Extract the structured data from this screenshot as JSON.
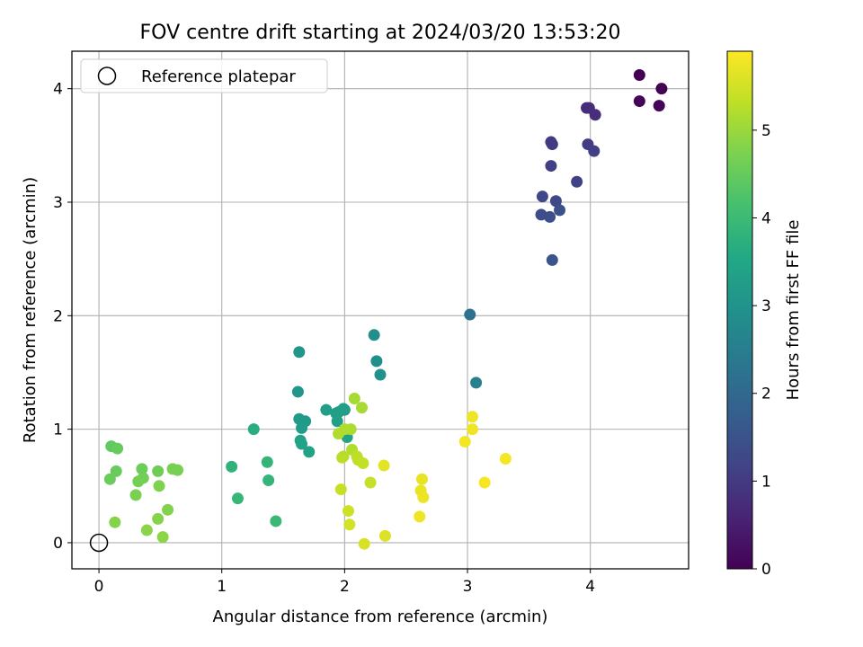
{
  "chart_data": {
    "type": "scatter",
    "title": "FOV centre drift starting at 2024/03/20 13:53:20",
    "xlabel": "Angular distance from reference (arcmin)",
    "ylabel": "Rotation from reference (arcmin)",
    "xlim": [
      -0.22,
      4.8
    ],
    "ylim": [
      -0.23,
      4.33
    ],
    "xticks": [
      0,
      1,
      2,
      3,
      4
    ],
    "yticks": [
      0,
      1,
      2,
      3,
      4
    ],
    "grid": true,
    "legend": {
      "placement": "top-left",
      "entries": [
        "Reference platepar"
      ]
    },
    "reference_point": {
      "x": 0,
      "y": 0,
      "label": "Reference platepar"
    },
    "colorbar": {
      "label": "Hours from first FF file",
      "min": 0,
      "max": 5.9,
      "ticks": [
        0,
        1,
        2,
        3,
        4,
        5
      ],
      "colormap": "viridis"
    },
    "series": [
      {
        "x": [
          4.4,
          4.58,
          4.4,
          4.56,
          3.97,
          3.99,
          4.04,
          3.68,
          3.69,
          3.98,
          4.03,
          3.68,
          3.89,
          3.61,
          3.72,
          3.6,
          3.67,
          3.75,
          3.69,
          3.02,
          3.07,
          2.24,
          2.26,
          2.29,
          1.63,
          1.62,
          1.95,
          2.0,
          1.63,
          1.68,
          1.65,
          1.85,
          1.93,
          1.94,
          1.99,
          1.64,
          1.65,
          1.71,
          2.02,
          1.26,
          1.08,
          1.37,
          1.38,
          1.13,
          1.44,
          0.1,
          0.15,
          0.14,
          0.09,
          0.35,
          0.48,
          0.36,
          0.32,
          0.6,
          0.64,
          0.3,
          0.49,
          0.56,
          0.13,
          0.48,
          0.39,
          0.52,
          2.08,
          2.14,
          2.05,
          2.0,
          1.95,
          2.06,
          1.99,
          1.98,
          2.1,
          2.11,
          2.15,
          2.21,
          1.97,
          2.03,
          2.04,
          2.16,
          2.33,
          2.32,
          3.04,
          3.04,
          2.98,
          3.31,
          3.14,
          2.63,
          2.62,
          2.64,
          2.61
        ],
        "y": [
          4.12,
          4.0,
          3.89,
          3.85,
          3.83,
          3.83,
          3.77,
          3.53,
          3.51,
          3.51,
          3.45,
          3.32,
          3.18,
          3.05,
          3.01,
          2.89,
          2.87,
          2.93,
          2.49,
          2.01,
          1.41,
          1.83,
          1.6,
          1.48,
          1.68,
          1.33,
          1.15,
          1.17,
          1.09,
          1.07,
          1.01,
          1.17,
          1.14,
          1.07,
          1.18,
          0.9,
          0.87,
          0.8,
          0.93,
          1.0,
          0.67,
          0.71,
          0.55,
          0.39,
          0.19,
          0.85,
          0.83,
          0.63,
          0.56,
          0.65,
          0.63,
          0.57,
          0.54,
          0.65,
          0.64,
          0.42,
          0.5,
          0.29,
          0.18,
          0.21,
          0.11,
          0.05,
          1.27,
          1.19,
          1.0,
          1.0,
          0.96,
          0.82,
          0.76,
          0.75,
          0.76,
          0.73,
          0.7,
          0.53,
          0.47,
          0.28,
          0.16,
          -0.01,
          0.06,
          0.68,
          1.11,
          1.0,
          0.89,
          0.74,
          0.53,
          0.56,
          0.46,
          0.4,
          0.23
        ],
        "hours": [
          0.0,
          0.02,
          0.05,
          0.07,
          0.72,
          0.75,
          0.78,
          1.0,
          1.02,
          1.05,
          1.08,
          1.1,
          1.15,
          1.25,
          1.3,
          1.35,
          1.4,
          1.45,
          1.55,
          2.2,
          2.55,
          2.9,
          2.92,
          2.95,
          3.05,
          3.1,
          3.12,
          3.15,
          3.18,
          3.2,
          3.22,
          3.25,
          3.28,
          3.3,
          3.32,
          3.35,
          3.38,
          3.4,
          3.42,
          3.7,
          3.8,
          3.85,
          3.88,
          3.9,
          3.95,
          4.45,
          4.5,
          4.52,
          4.55,
          4.58,
          4.6,
          4.62,
          4.65,
          4.68,
          4.7,
          4.72,
          4.75,
          4.78,
          4.8,
          4.82,
          4.85,
          4.88,
          5.1,
          5.12,
          5.15,
          5.18,
          5.2,
          5.22,
          5.25,
          5.28,
          5.3,
          5.32,
          5.35,
          5.38,
          5.4,
          5.45,
          5.5,
          5.55,
          5.6,
          5.65,
          5.75,
          5.78,
          5.8,
          5.82,
          5.85,
          5.7,
          5.72,
          5.74,
          5.76
        ]
      }
    ]
  }
}
